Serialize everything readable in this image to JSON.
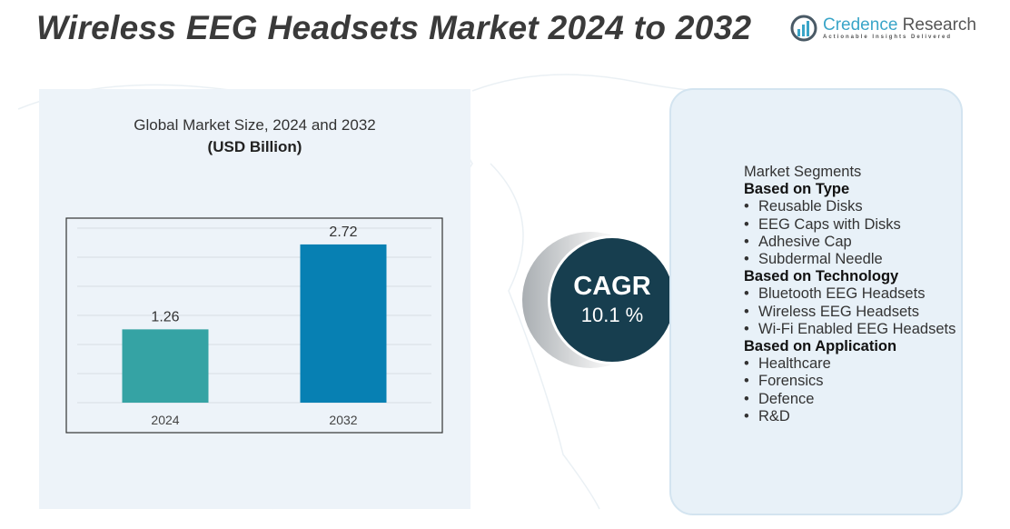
{
  "header": {
    "title": "Wireless EEG Headsets Market 2024 to 2032"
  },
  "logo": {
    "name_part1": "Credence",
    "name_part2": " Research",
    "tagline": "Actionable Insights Delivered"
  },
  "chart_data": {
    "type": "bar",
    "title": "Global Market Size,  2024 and 2032",
    "unit": "(USD Billion)",
    "categories": [
      "2024",
      "2032"
    ],
    "values": [
      1.26,
      2.72
    ],
    "data_labels": [
      "1.26",
      "2.72"
    ],
    "colors": [
      "#35a3a4",
      "#0780b3"
    ],
    "ylim": [
      0,
      3
    ],
    "grid": true,
    "xlabel": "",
    "ylabel": ""
  },
  "cagr": {
    "label": "CAGR",
    "value": "10.1 %"
  },
  "segments": {
    "title": "Market Segments",
    "groups": [
      {
        "header": "Based on Type",
        "items": [
          "Reusable Disks",
          "EEG Caps with Disks",
          "Adhesive Cap",
          "Subdermal Needle"
        ]
      },
      {
        "header": "Based on Technology",
        "items": [
          "Bluetooth EEG Headsets",
          "Wireless  EEG Headsets",
          "Wi-Fi  Enabled EEG Headsets"
        ]
      },
      {
        "header": "Based on Application",
        "items": [
          "Healthcare",
          "Forensics",
          "Defence",
          "R&D"
        ]
      }
    ]
  }
}
